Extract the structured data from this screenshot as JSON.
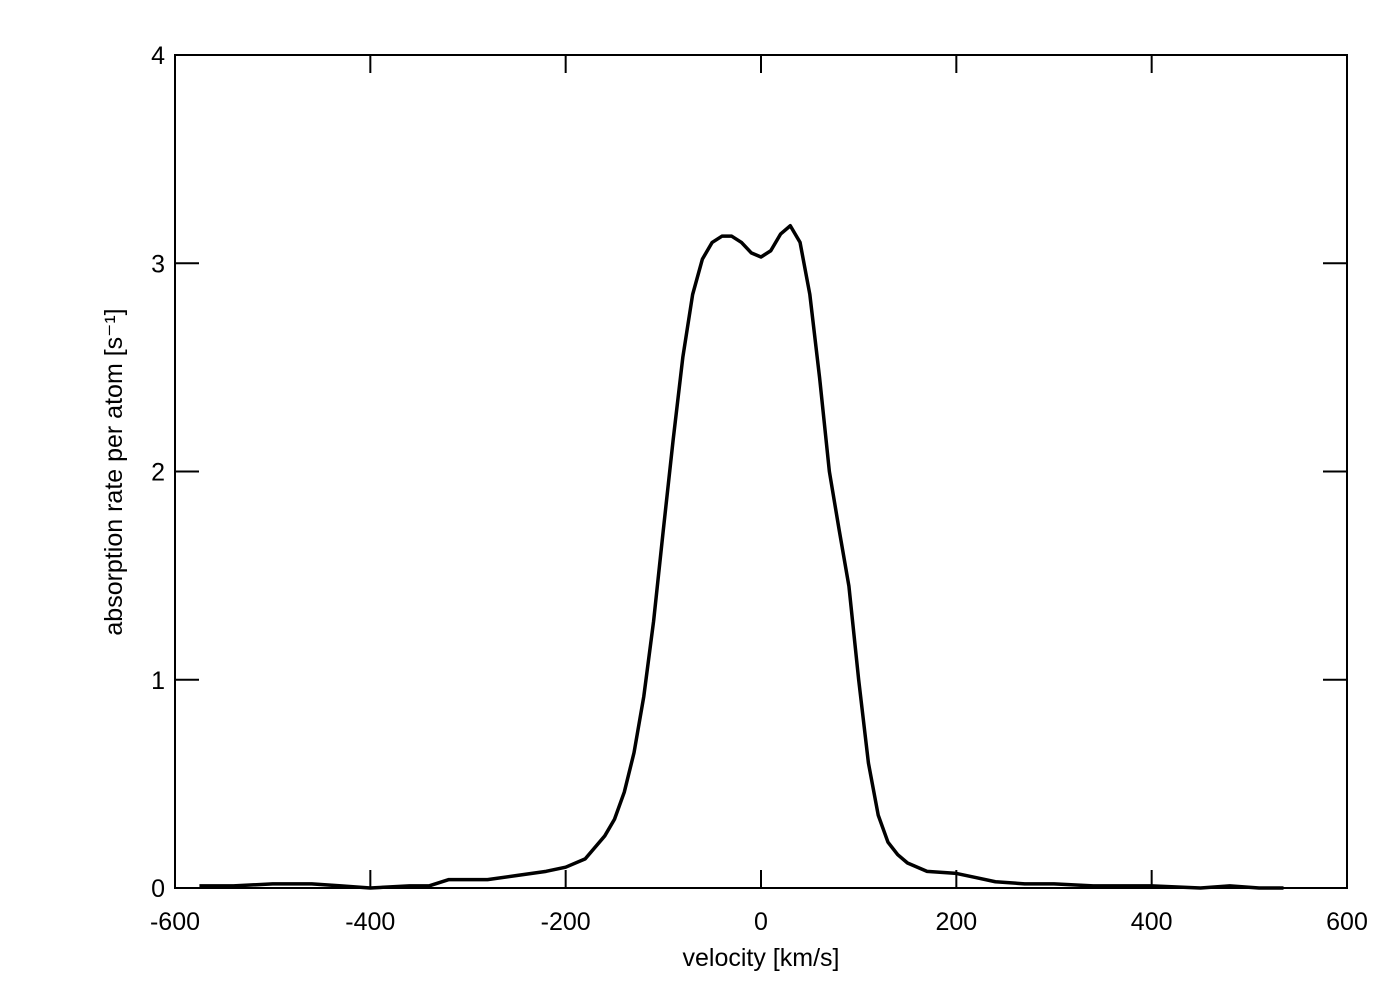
{
  "chart_data": {
    "type": "line",
    "xlabel": "velocity [km/s]",
    "ylabel": "absorption rate per atom [s⁻¹]",
    "xlim": [
      -600,
      600
    ],
    "xticks": [
      -600,
      -400,
      -200,
      0,
      200,
      400,
      600
    ],
    "ylim": [
      0,
      4
    ],
    "yticks": [
      0,
      1,
      2,
      3,
      4
    ],
    "x": [
      -575,
      -540,
      -500,
      -460,
      -430,
      -400,
      -360,
      -340,
      -320,
      -300,
      -280,
      -250,
      -220,
      -200,
      -180,
      -160,
      -150,
      -140,
      -130,
      -120,
      -110,
      -100,
      -90,
      -80,
      -70,
      -60,
      -50,
      -40,
      -30,
      -20,
      -10,
      0,
      10,
      20,
      30,
      40,
      50,
      60,
      70,
      80,
      90,
      100,
      110,
      120,
      130,
      140,
      150,
      170,
      200,
      220,
      240,
      270,
      300,
      340,
      400,
      450,
      480,
      510,
      535
    ],
    "series": [
      {
        "color": "#000000",
        "values": [
          0.01,
          0.01,
          0.02,
          0.02,
          0.01,
          0.0,
          0.01,
          0.01,
          0.04,
          0.04,
          0.04,
          0.06,
          0.08,
          0.1,
          0.14,
          0.25,
          0.33,
          0.46,
          0.65,
          0.92,
          1.28,
          1.72,
          2.15,
          2.55,
          2.85,
          3.02,
          3.1,
          3.13,
          3.13,
          3.1,
          3.05,
          3.03,
          3.06,
          3.14,
          3.18,
          3.1,
          2.85,
          2.45,
          2.0,
          1.72,
          1.45,
          1.0,
          0.6,
          0.35,
          0.22,
          0.16,
          0.12,
          0.08,
          0.07,
          0.05,
          0.03,
          0.02,
          0.02,
          0.01,
          0.01,
          0.0,
          0.01,
          0.0,
          0.0
        ]
      }
    ]
  }
}
